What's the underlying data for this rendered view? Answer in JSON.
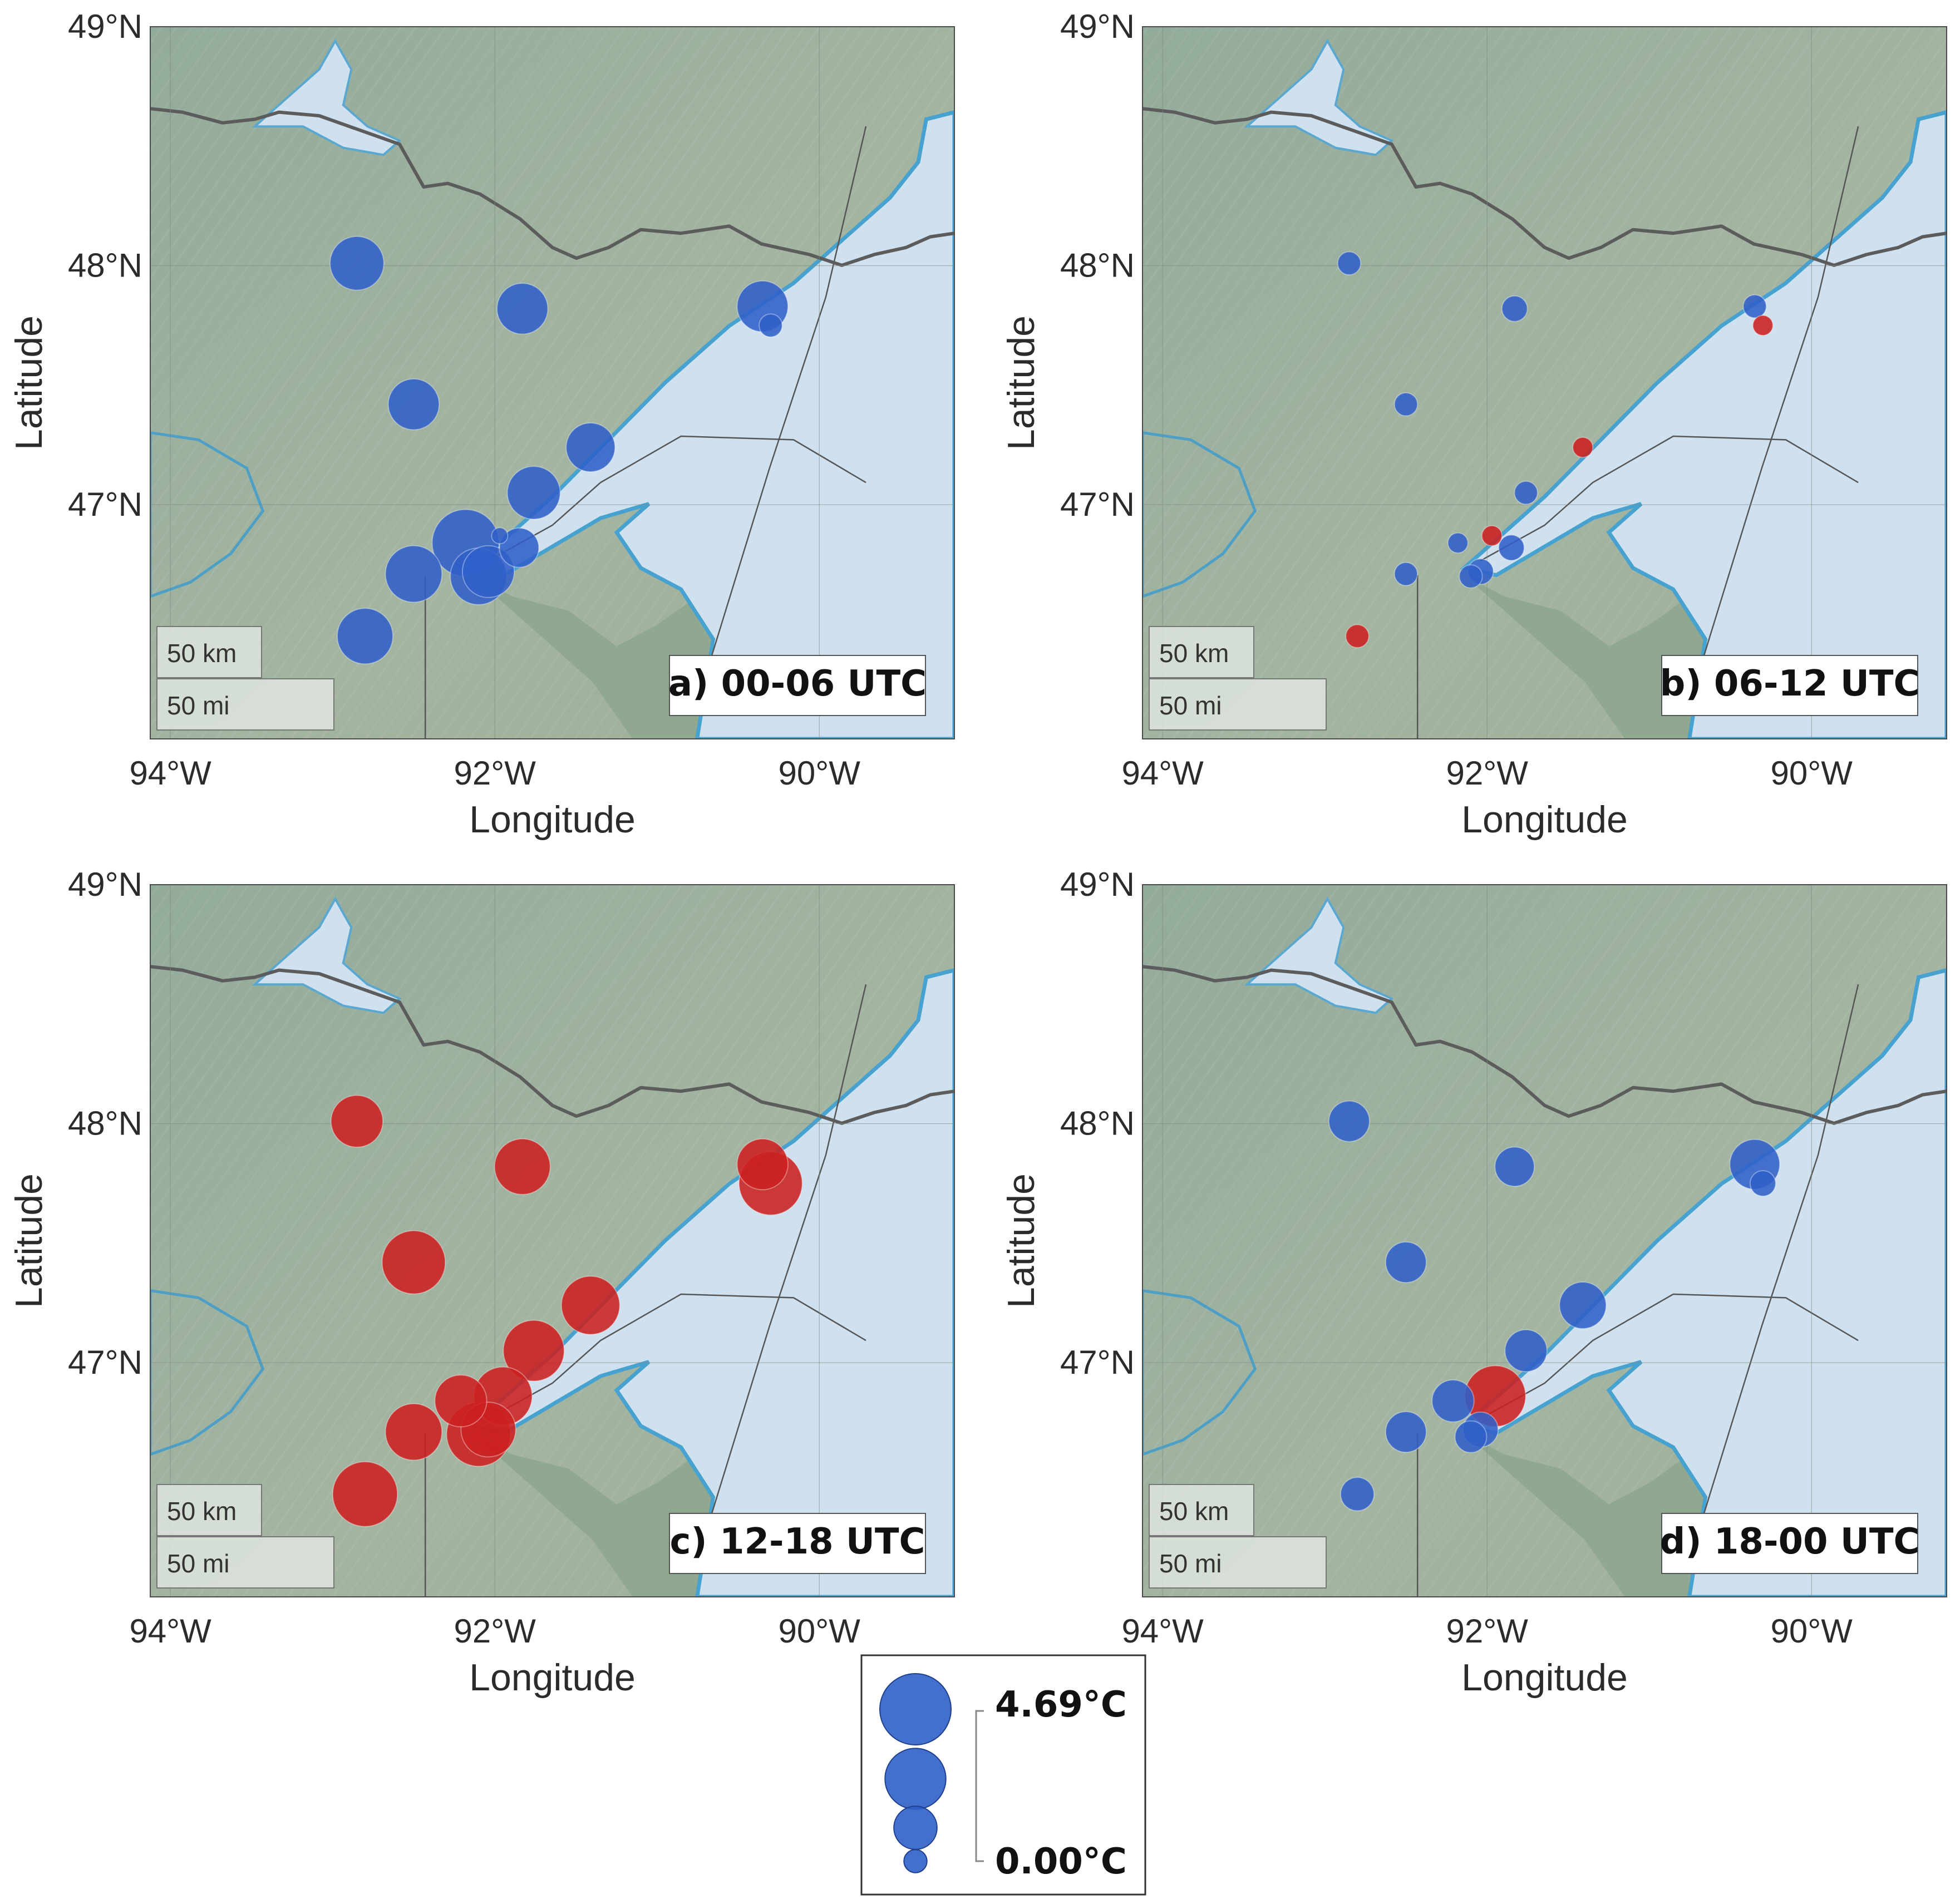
{
  "chart_data": {
    "type": "scatter",
    "map_extent": {
      "lon": [
        -94.0,
        -91.5
      ],
      "lat": [
        46.0,
        49.0
      ]
    },
    "size_range_degC": [
      0.0,
      4.69
    ],
    "colors": {
      "negative": "#3060c8",
      "positive": "#cc2020"
    },
    "panels": [
      {
        "title": "a) 00-06 UTC",
        "xlabel": "Longitude",
        "ylabel": "Latitude",
        "xticks": [
          "94°W",
          "92°W",
          "90°W"
        ],
        "yticks": [
          "49°N",
          "48°N",
          "47°N"
        ],
        "scale_bar": [
          "50 km",
          "50 mi"
        ],
        "points": [
          {
            "lon": -92.85,
            "lat": 48.01,
            "value": 2.5,
            "sign": "negative"
          },
          {
            "lon": -91.83,
            "lat": 47.82,
            "value": 2.2,
            "sign": "negative"
          },
          {
            "lon": -90.35,
            "lat": 47.83,
            "value": 2.2,
            "sign": "negative"
          },
          {
            "lon": -90.3,
            "lat": 47.75,
            "value": 0.3,
            "sign": "negative"
          },
          {
            "lon": -92.5,
            "lat": 47.42,
            "value": 2.2,
            "sign": "negative"
          },
          {
            "lon": -91.41,
            "lat": 47.24,
            "value": 2.0,
            "sign": "negative"
          },
          {
            "lon": -91.76,
            "lat": 47.05,
            "value": 2.4,
            "sign": "negative"
          },
          {
            "lon": -92.18,
            "lat": 46.84,
            "value": 4.1,
            "sign": "negative"
          },
          {
            "lon": -91.85,
            "lat": 46.82,
            "value": 1.2,
            "sign": "negative"
          },
          {
            "lon": -91.97,
            "lat": 46.87,
            "value": 0.1,
            "sign": "negative"
          },
          {
            "lon": -92.5,
            "lat": 46.71,
            "value": 2.8,
            "sign": "negative"
          },
          {
            "lon": -92.1,
            "lat": 46.7,
            "value": 2.8,
            "sign": "negative"
          },
          {
            "lon": -92.04,
            "lat": 46.72,
            "value": 2.3,
            "sign": "negative"
          },
          {
            "lon": -92.8,
            "lat": 46.45,
            "value": 2.7,
            "sign": "negative"
          }
        ]
      },
      {
        "title": "b) 06-12 UTC",
        "xlabel": "Longitude",
        "ylabel": "Latitude",
        "xticks": [
          "94°W",
          "92°W",
          "90°W"
        ],
        "yticks": [
          "49°N",
          "48°N",
          "47°N"
        ],
        "scale_bar": [
          "50 km",
          "50 mi"
        ],
        "points": [
          {
            "lon": -92.85,
            "lat": 48.01,
            "value": 0.3,
            "sign": "negative"
          },
          {
            "lon": -91.83,
            "lat": 47.82,
            "value": 0.4,
            "sign": "negative"
          },
          {
            "lon": -90.35,
            "lat": 47.83,
            "value": 0.3,
            "sign": "negative"
          },
          {
            "lon": -90.3,
            "lat": 47.75,
            "value": 0.2,
            "sign": "positive"
          },
          {
            "lon": -92.5,
            "lat": 47.42,
            "value": 0.3,
            "sign": "negative"
          },
          {
            "lon": -91.41,
            "lat": 47.24,
            "value": 0.2,
            "sign": "positive"
          },
          {
            "lon": -91.76,
            "lat": 47.05,
            "value": 0.3,
            "sign": "negative"
          },
          {
            "lon": -92.18,
            "lat": 46.84,
            "value": 0.2,
            "sign": "negative"
          },
          {
            "lon": -91.85,
            "lat": 46.82,
            "value": 0.4,
            "sign": "negative"
          },
          {
            "lon": -91.97,
            "lat": 46.87,
            "value": 0.2,
            "sign": "positive"
          },
          {
            "lon": -92.5,
            "lat": 46.71,
            "value": 0.3,
            "sign": "negative"
          },
          {
            "lon": -92.1,
            "lat": 46.7,
            "value": 0.3,
            "sign": "negative"
          },
          {
            "lon": -92.04,
            "lat": 46.72,
            "value": 0.4,
            "sign": "negative"
          },
          {
            "lon": -92.8,
            "lat": 46.45,
            "value": 0.3,
            "sign": "positive"
          }
        ]
      },
      {
        "title": "c) 12-18 UTC",
        "xlabel": "Longitude",
        "ylabel": "Latitude",
        "xticks": [
          "94°W",
          "92°W",
          "90°W"
        ],
        "yticks": [
          "49°N",
          "48°N",
          "47°N"
        ],
        "scale_bar": [
          "50 km",
          "50 mi"
        ],
        "points": [
          {
            "lon": -92.85,
            "lat": 48.01,
            "value": 2.3,
            "sign": "positive"
          },
          {
            "lon": -91.83,
            "lat": 47.82,
            "value": 2.7,
            "sign": "positive"
          },
          {
            "lon": -90.35,
            "lat": 47.83,
            "value": 2.2,
            "sign": "positive"
          },
          {
            "lon": -90.3,
            "lat": 47.75,
            "value": 3.6,
            "sign": "positive"
          },
          {
            "lon": -92.5,
            "lat": 47.42,
            "value": 3.6,
            "sign": "positive"
          },
          {
            "lon": -91.41,
            "lat": 47.24,
            "value": 3.0,
            "sign": "positive"
          },
          {
            "lon": -91.76,
            "lat": 47.05,
            "value": 3.3,
            "sign": "positive"
          },
          {
            "lon": -92.21,
            "lat": 46.84,
            "value": 2.3,
            "sign": "positive"
          },
          {
            "lon": -91.95,
            "lat": 46.86,
            "value": 3.0,
            "sign": "positive"
          },
          {
            "lon": -92.5,
            "lat": 46.71,
            "value": 2.8,
            "sign": "positive"
          },
          {
            "lon": -92.1,
            "lat": 46.7,
            "value": 3.7,
            "sign": "positive"
          },
          {
            "lon": -92.04,
            "lat": 46.72,
            "value": 2.6,
            "sign": "positive"
          },
          {
            "lon": -92.8,
            "lat": 46.45,
            "value": 3.8,
            "sign": "positive"
          }
        ]
      },
      {
        "title": "d) 18-00 UTC",
        "xlabel": "Longitude",
        "ylabel": "Latitude",
        "xticks": [
          "94°W",
          "92°W",
          "90°W"
        ],
        "yticks": [
          "49°N",
          "48°N",
          "47°N"
        ],
        "scale_bar": [
          "50 km",
          "50 mi"
        ],
        "points": [
          {
            "lon": -92.85,
            "lat": 48.01,
            "value": 1.3,
            "sign": "negative"
          },
          {
            "lon": -91.83,
            "lat": 47.82,
            "value": 1.2,
            "sign": "negative"
          },
          {
            "lon": -90.35,
            "lat": 47.83,
            "value": 2.1,
            "sign": "negative"
          },
          {
            "lon": -90.3,
            "lat": 47.75,
            "value": 0.4,
            "sign": "negative"
          },
          {
            "lon": -92.5,
            "lat": 47.42,
            "value": 1.3,
            "sign": "negative"
          },
          {
            "lon": -91.41,
            "lat": 47.24,
            "value": 1.8,
            "sign": "negative"
          },
          {
            "lon": -91.76,
            "lat": 47.05,
            "value": 1.4,
            "sign": "negative"
          },
          {
            "lon": -91.95,
            "lat": 46.86,
            "value": 3.3,
            "sign": "positive"
          },
          {
            "lon": -92.21,
            "lat": 46.84,
            "value": 1.4,
            "sign": "negative"
          },
          {
            "lon": -92.5,
            "lat": 46.71,
            "value": 1.3,
            "sign": "negative"
          },
          {
            "lon": -92.1,
            "lat": 46.69,
            "value": 0.7,
            "sign": "negative"
          },
          {
            "lon": -92.04,
            "lat": 46.72,
            "value": 0.9,
            "sign": "negative"
          },
          {
            "lon": -92.8,
            "lat": 46.45,
            "value": 0.8,
            "sign": "negative"
          }
        ]
      }
    ],
    "legend": {
      "max_label": "4.69°C",
      "min_label": "0.00°C",
      "sample_values": [
        4.69,
        3.3,
        1.5,
        0.3
      ]
    }
  }
}
